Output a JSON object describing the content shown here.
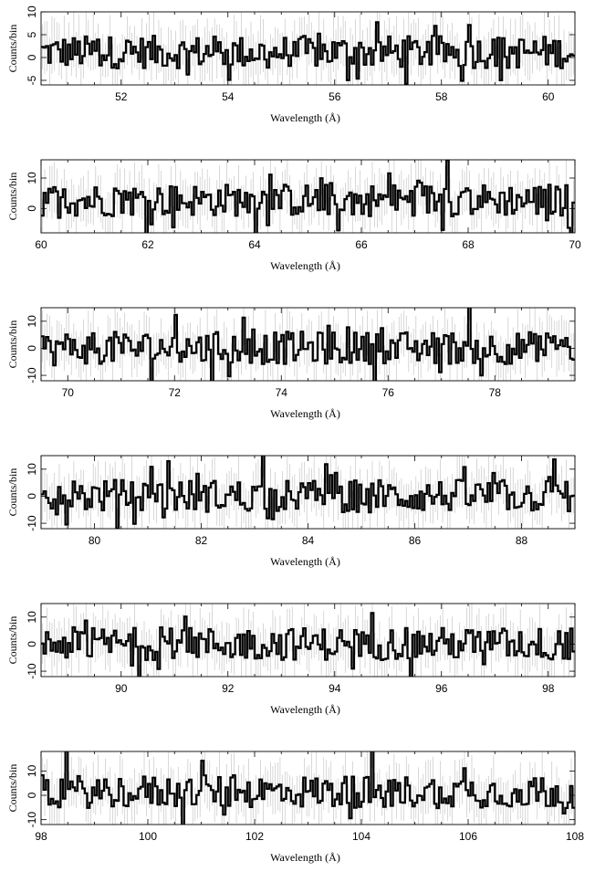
{
  "chart_data": [
    {
      "type": "line",
      "style": "histogram",
      "xlim": [
        50.5,
        60.5
      ],
      "ylim": [
        -6,
        10
      ],
      "xticks": [
        52,
        54,
        56,
        58,
        60
      ],
      "yticks": [
        -5,
        0,
        5,
        10
      ],
      "xlabel": "Wavelength (Å)",
      "ylabel": "Counts/bin",
      "error_bars": true,
      "error_half": 5
    },
    {
      "type": "line",
      "style": "histogram",
      "xlim": [
        60,
        70
      ],
      "ylim": [
        -8,
        16
      ],
      "xticks": [
        60,
        62,
        64,
        66,
        68,
        70
      ],
      "yticks": [
        0,
        10
      ],
      "xlabel": "Wavelength (Å)",
      "ylabel": "Counts/bin",
      "error_bars": true,
      "error_half": 7
    },
    {
      "type": "line",
      "style": "histogram",
      "xlim": [
        69.5,
        79.5
      ],
      "ylim": [
        -12,
        15
      ],
      "xticks": [
        70,
        72,
        74,
        76,
        78
      ],
      "yticks": [
        -10,
        0,
        10
      ],
      "xlabel": "Wavelength (Å)",
      "ylabel": "Counts/bin",
      "error_bars": true,
      "error_half": 8
    },
    {
      "type": "line",
      "style": "histogram",
      "xlim": [
        79,
        89
      ],
      "ylim": [
        -12,
        15
      ],
      "xticks": [
        80,
        82,
        84,
        86,
        88
      ],
      "yticks": [
        -10,
        0,
        10
      ],
      "xlabel": "Wavelength (Å)",
      "ylabel": "Counts/bin",
      "error_bars": true,
      "error_half": 8
    },
    {
      "type": "line",
      "style": "histogram",
      "xlim": [
        88.5,
        98.5
      ],
      "ylim": [
        -12,
        15
      ],
      "xticks": [
        90,
        92,
        94,
        96,
        98
      ],
      "yticks": [
        -10,
        0,
        10
      ],
      "xlabel": "Wavelength (Å)",
      "ylabel": "Counts/bin",
      "error_bars": true,
      "error_half": 8
    },
    {
      "type": "line",
      "style": "histogram",
      "xlim": [
        98,
        108
      ],
      "ylim": [
        -12,
        18
      ],
      "xticks": [
        98,
        100,
        102,
        104,
        106,
        108
      ],
      "yticks": [
        -10,
        0,
        10
      ],
      "xlabel": "Wavelength (Å)",
      "ylabel": "Counts/bin",
      "error_bars": true,
      "error_half": 9
    }
  ]
}
